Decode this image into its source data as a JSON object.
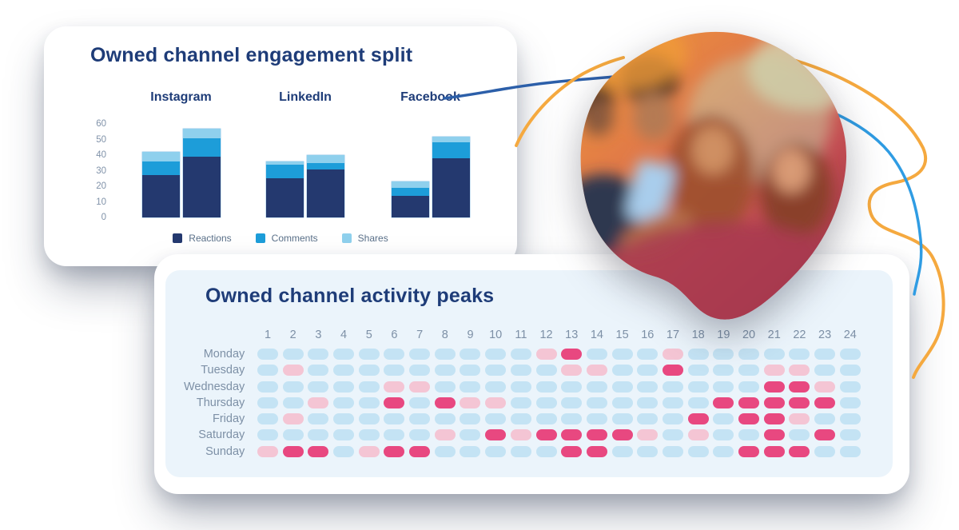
{
  "colors": {
    "title_navy": "#1e3c78",
    "axis_label": "#8092a9",
    "heatmap_label": "#7d90a6",
    "legend_text": "#5a7089",
    "card_bg": "#ffffff",
    "panel_bg": "#ebf4fb",
    "decor_orange": "#f5a93f",
    "decor_blue": "#2f9ce3",
    "decor_dark_blue": "#2c5fa9"
  },
  "photo": {
    "description": "Blob-masked photo of four friends taking a smartphone selfie, warm orange-to-red duotone"
  },
  "chart_data": [
    {
      "type": "bar",
      "stacked": true,
      "title": "Owned channel engagement split",
      "groups": [
        "Instagram",
        "LinkedIn",
        "Facebook"
      ],
      "bars_per_group": 2,
      "series": [
        {
          "name": "Reactions",
          "color": "#24396f",
          "values": [
            [
              27,
              39
            ],
            [
              25,
              31
            ],
            [
              14,
              38
            ]
          ]
        },
        {
          "name": "Comments",
          "color": "#1d9dd9",
          "values": [
            [
              9,
              12
            ],
            [
              9,
              4
            ],
            [
              5,
              10
            ]
          ]
        },
        {
          "name": "Shares",
          "color": "#8fd0ed",
          "values": [
            [
              6,
              6
            ],
            [
              2,
              5
            ],
            [
              4,
              4
            ]
          ]
        }
      ],
      "bar_totals": [
        [
          42,
          57
        ],
        [
          36,
          40
        ],
        [
          23,
          52
        ]
      ],
      "ylim": [
        0,
        60
      ],
      "yticks": [
        0,
        10,
        20,
        30,
        40,
        50,
        60
      ],
      "grid": false,
      "legend_position": "bottom"
    },
    {
      "type": "heatmap",
      "title": "Owned channel activity peaks",
      "x_labels": [
        "1",
        "2",
        "3",
        "4",
        "5",
        "6",
        "7",
        "8",
        "9",
        "10",
        "11",
        "12",
        "13",
        "14",
        "15",
        "16",
        "17",
        "18",
        "19",
        "20",
        "21",
        "22",
        "23",
        "24"
      ],
      "y_labels": [
        "Monday",
        "Tuesday",
        "Wednesday",
        "Thursday",
        "Friday",
        "Saturday",
        "Sunday"
      ],
      "level_names": {
        "0": "low",
        "1": "medium",
        "2": "high"
      },
      "level_colors": {
        "0": "#c4e3f4",
        "1": "#f4c5d4",
        "2": "#e84880"
      },
      "values": [
        [
          0,
          0,
          0,
          0,
          0,
          0,
          0,
          0,
          0,
          0,
          0,
          1,
          2,
          0,
          0,
          0,
          1,
          0,
          0,
          0,
          0,
          0,
          0,
          0
        ],
        [
          0,
          1,
          0,
          0,
          0,
          0,
          0,
          0,
          0,
          0,
          0,
          0,
          1,
          1,
          0,
          0,
          2,
          0,
          0,
          0,
          1,
          1,
          0,
          0
        ],
        [
          0,
          0,
          0,
          0,
          0,
          1,
          1,
          0,
          0,
          0,
          0,
          0,
          0,
          0,
          0,
          0,
          0,
          0,
          0,
          0,
          2,
          2,
          1,
          0
        ],
        [
          0,
          0,
          1,
          0,
          0,
          2,
          0,
          2,
          1,
          1,
          0,
          0,
          0,
          0,
          0,
          0,
          0,
          0,
          2,
          2,
          2,
          2,
          2,
          0
        ],
        [
          0,
          1,
          0,
          0,
          0,
          0,
          0,
          0,
          0,
          0,
          0,
          0,
          0,
          0,
          0,
          0,
          0,
          2,
          0,
          2,
          2,
          1,
          0,
          0
        ],
        [
          0,
          0,
          0,
          0,
          0,
          0,
          0,
          1,
          0,
          2,
          1,
          2,
          2,
          2,
          2,
          1,
          0,
          1,
          0,
          0,
          2,
          0,
          2,
          0
        ],
        [
          1,
          2,
          2,
          0,
          1,
          2,
          2,
          0,
          0,
          0,
          0,
          0,
          2,
          2,
          0,
          0,
          0,
          0,
          0,
          2,
          2,
          2,
          0,
          0
        ]
      ]
    }
  ]
}
